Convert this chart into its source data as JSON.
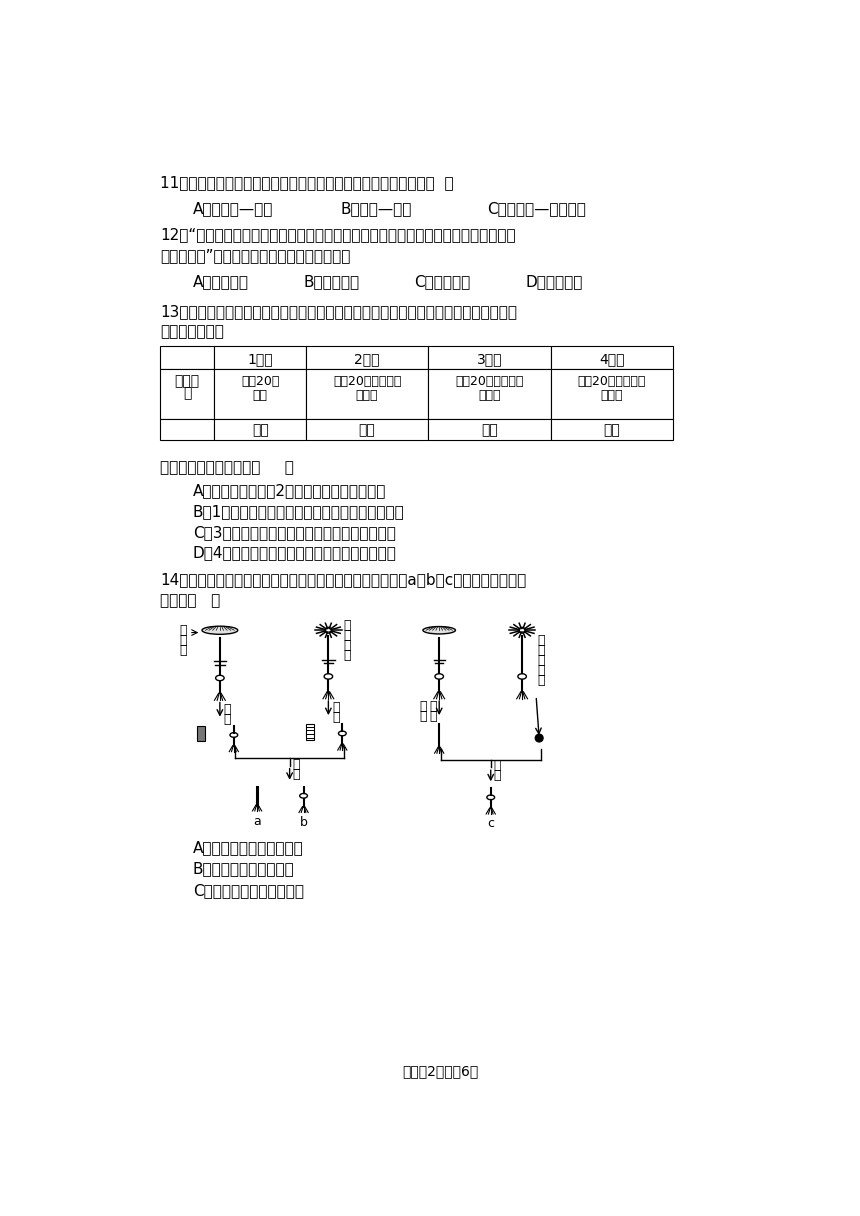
{
  "bg_color": "#ffffff",
  "page_width": 8.6,
  "page_height": 12.16,
  "footer": "试卷的2页，兲6页",
  "q11_text": "11．下列各项表示动物与其栅息环境的对应关系，其中正确的是（  ）",
  "q11_a": "A．丹顶鹤—湿地",
  "q11_b": "B．袋鼠—森林",
  "q11_c": "C．华南虎—南极冰原",
  "q12_text1": "12．“当你小心的翻开庭院中的花盆或砖块时，常常会看到一种叫鼠妇的灰褐色小昆虫",
  "q12_text2": "迅速爬走了”，由此可推知，鼠妇栅息的环境是",
  "q12_a": "A．阴暗潮湿",
  "q12_b": "B．光亮潮湿",
  "q12_c": "C．阴暗干燥",
  "q12_d": "D．光亮干燥",
  "q13_text1": "13．某生物小组在探究种子萸发的外界条件的实验中进行了如表的实验，请根据表格的",
  "q13_text2": "处理方法，分析",
  "table_col0": "",
  "table_col1": "1号瓶",
  "table_col2": "2号瓶",
  "table_col3": "3号瓶",
  "table_col4": "4号瓶",
  "table_label1": "处理方",
  "table_label2": "法",
  "table_r1c1a": "放缠20粒",
  "table_r1c1b": "种子",
  "table_r1c2a": "放缠20粒种子并加",
  "table_r1c2b": "适量水",
  "table_r1c3a": "放缠20粒种子加较",
  "table_r1c3b": "多的水",
  "table_r1c4a": "放缠20粒种子并加",
  "table_r1c4b": "适量水",
  "table_r2c1": "室温",
  "table_r2c2": "室温",
  "table_r2c3": "室温",
  "table_r2c4": "低温",
  "q13_judge": "判断下列叙述错误的是（     ）",
  "q13_a": "A．在这四瓶种子中2号瓶内的种子可能会萸发",
  "q13_b": "B．1号瓶内种子不能萸发的原因是没有充足的空气",
  "q13_c": "C．3号瓶种子不能萸发的原因是没有充足的空气",
  "q13_d": "D．4号瓶种子不能萸发的原因是没有适宜的温度",
  "q14_text1": "14．如图是以伞藻为材料，设计的实验流程，一段时间后，a、b、c发育成的伞帽形状",
  "q14_text2": "依次为（   ）",
  "q14_a": "A．伞状、菊花状、菊花状",
  "q14_b": "B．伞状、菊花状、伞状",
  "q14_c": "C．菊花状、伞状、菊花状",
  "label_umbrella": [
    "伞",
    "状",
    "帽"
  ],
  "label_chrysanthemum": [
    "菊",
    "花",
    "状",
    "帽"
  ],
  "label_jiecai": [
    "截",
    "取"
  ],
  "label_jiecaiquhe": [
    "截",
    "取",
    "去",
    "核"
  ],
  "label_zuhe": [
    "组",
    "合"
  ],
  "label_ronghe": [
    "融",
    "合"
  ],
  "label_quchu": [
    "取",
    "出",
    "细",
    "胞",
    "核"
  ]
}
